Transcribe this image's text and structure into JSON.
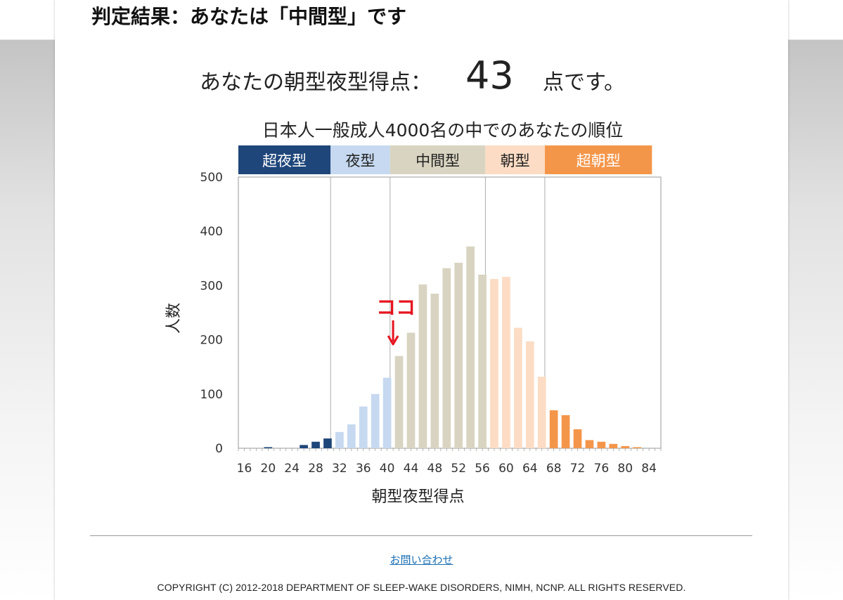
{
  "result_title": "判定結果：あなたは「中間型」です",
  "score": {
    "label": "あなたの朝型夜型得点：",
    "value": "43",
    "suffix": "点です。"
  },
  "chart_data": {
    "type": "bar",
    "title": "日本人一般成人4000名の中でのあなたの順位",
    "xlabel": "朝型夜型得点",
    "ylabel": "人数",
    "ylim": [
      0,
      500
    ],
    "xlim": [
      15,
      86
    ],
    "yticks": [
      0,
      100,
      200,
      300,
      400,
      500
    ],
    "xticks": [
      16,
      20,
      24,
      28,
      32,
      36,
      40,
      44,
      48,
      52,
      56,
      60,
      64,
      68,
      72,
      76,
      80,
      84
    ],
    "grid": false,
    "categories_bands": [
      {
        "name": "超夜型",
        "from": 15,
        "to": 30.5,
        "color": "#1f467a",
        "text_color": "#ffffff"
      },
      {
        "name": "夜型",
        "from": 30.5,
        "to": 40.5,
        "color": "#c6d9f0",
        "text_color": "#222222"
      },
      {
        "name": "中間型",
        "from": 40.5,
        "to": 56.5,
        "color": "#d9d4c1",
        "text_color": "#222222"
      },
      {
        "name": "朝型",
        "from": 56.5,
        "to": 66.5,
        "color": "#fcdcc4",
        "text_color": "#222222"
      },
      {
        "name": "超朝型",
        "from": 66.5,
        "to": 84.5,
        "color": "#f4964a",
        "text_color": "#ffffff"
      }
    ],
    "annotation": {
      "text": "ココ",
      "x": 41,
      "color": "#e6141e"
    },
    "series": [
      {
        "x": [
          16,
          17,
          18,
          19,
          20,
          21,
          22,
          23,
          24,
          25,
          26,
          27,
          28,
          29,
          30,
          31,
          32,
          33,
          34,
          35,
          36,
          37,
          38,
          39,
          40,
          41,
          42,
          43,
          44,
          45,
          46,
          47,
          48,
          49,
          50,
          51,
          52,
          53,
          54,
          55,
          56,
          57,
          58,
          59,
          60,
          61,
          62,
          63,
          64,
          65,
          66,
          67,
          68,
          69,
          70,
          71,
          72,
          73,
          74,
          75,
          76,
          77,
          78,
          79,
          80,
          81,
          82,
          83,
          84
        ],
        "values": [
          0,
          0,
          0,
          0,
          2,
          0,
          0,
          0,
          0,
          0,
          6,
          0,
          12,
          0,
          18,
          0,
          30,
          0,
          44,
          0,
          77,
          0,
          100,
          0,
          130,
          0,
          170,
          0,
          213,
          0,
          302,
          0,
          285,
          0,
          332,
          0,
          342,
          0,
          372,
          0,
          320,
          0,
          312,
          0,
          316,
          0,
          222,
          0,
          197,
          0,
          132,
          0,
          70,
          0,
          61,
          0,
          35,
          0,
          15,
          0,
          12,
          0,
          8,
          0,
          4,
          0,
          2,
          0,
          0
        ]
      }
    ]
  },
  "footer": {
    "contact_link": "お問い合わせ",
    "copyright": "COPYRIGHT (C) 2012-2018 DEPARTMENT OF SLEEP-WAKE DISORDERS, NIMH, NCNP. ALL RIGHTS RESERVED."
  }
}
